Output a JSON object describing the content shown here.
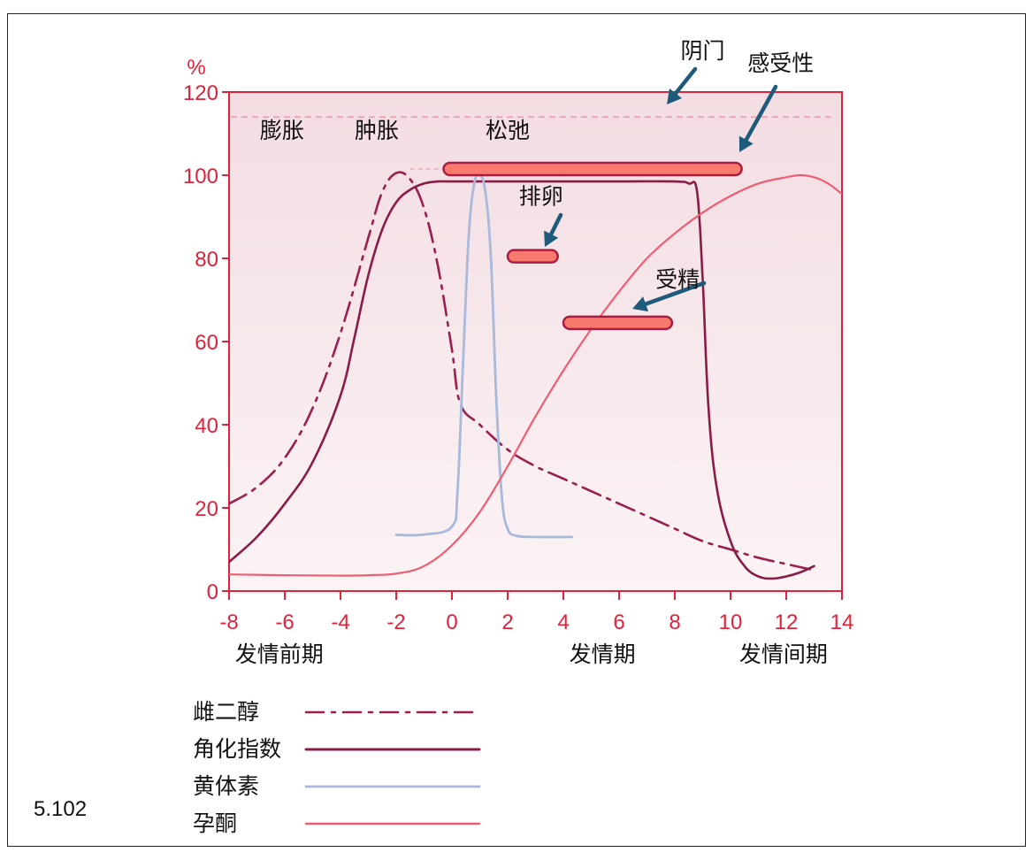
{
  "figure_number": "5.102",
  "chart_data": {
    "type": "line",
    "y_unit": "%",
    "xlim": [
      -8,
      14
    ],
    "ylim": [
      0,
      120
    ],
    "x_ticks": [
      -8,
      -6,
      -4,
      -2,
      0,
      2,
      4,
      6,
      8,
      10,
      12,
      14
    ],
    "y_ticks": [
      0,
      20,
      40,
      60,
      80,
      100,
      120
    ],
    "grid": false,
    "colors": {
      "axis": "#e2213a",
      "plot_bg_top": "#f3dde2",
      "plot_bg_bottom": "#fbf3f4",
      "estradiol": "#9b1f4e",
      "cornification": "#8a1c48",
      "progesterone": "#a8b9dc",
      "pregnanedione": "#ef5d72",
      "bar_fill": "#f77a6c",
      "bar_stroke": "#a81d42",
      "arrow": "#1e5a7a"
    },
    "phase_labels": [
      {
        "text": "发情前期",
        "x": -6.2
      },
      {
        "text": "发情期",
        "x": 5.4
      },
      {
        "text": "发情间期",
        "x": 11.9
      }
    ],
    "vulva_labels": [
      {
        "text": "膨胀",
        "x": -6.1
      },
      {
        "text": "肿胀",
        "x": -2.7
      },
      {
        "text": "松弛",
        "x": 2.0
      }
    ],
    "vulva_line_y": 114,
    "annotations": [
      {
        "text": "阴门",
        "x": 9.0,
        "y": 130
      },
      {
        "text": "感受性",
        "x": 11.8,
        "y": 127
      },
      {
        "text": "排卵",
        "x": 3.2,
        "y": 95
      },
      {
        "text": "受精",
        "x": 8.1,
        "y": 75
      }
    ],
    "bars": [
      {
        "name": "感受性",
        "start": -0.3,
        "end": 10.4,
        "y": 101.5
      },
      {
        "name": "排卵",
        "start": 2.0,
        "end": 3.8,
        "y": 80.5
      },
      {
        "name": "受精",
        "start": 4.0,
        "end": 7.9,
        "y": 64.5
      }
    ],
    "series": [
      {
        "name": "雌二醇",
        "style": "dashdot",
        "x": [
          -8,
          -7,
          -6,
          -5,
          -4,
          -3,
          -2.5,
          -2,
          -1.5,
          -1,
          -0.5,
          0,
          0.3,
          1,
          2,
          3,
          4,
          5,
          6,
          7,
          8,
          9,
          10,
          11,
          12,
          13
        ],
        "y": [
          21,
          25,
          32,
          44,
          62,
          85,
          96,
          100.5,
          99,
          92,
          78,
          58,
          45,
          40,
          34,
          30,
          27,
          24,
          21,
          18,
          15,
          12,
          10,
          8,
          6.5,
          5
        ]
      },
      {
        "name": "角化指数",
        "style": "solid",
        "x": [
          -8,
          -7,
          -6,
          -5,
          -4,
          -3.5,
          -3,
          -2.5,
          -2,
          -1.5,
          -1,
          -0.5,
          0,
          2,
          4,
          6,
          8,
          8.5,
          8.8,
          9,
          9.2,
          9.5,
          10,
          10.5,
          11,
          11.5,
          12,
          12.5,
          13
        ],
        "y": [
          7,
          13,
          21,
          31,
          47,
          61,
          76,
          87,
          93.5,
          96.5,
          98,
          98.5,
          98.5,
          98.5,
          98.5,
          98.5,
          98.5,
          98,
          96,
          75,
          45,
          25,
          12,
          6,
          3.5,
          3,
          3.5,
          4.5,
          6
        ]
      },
      {
        "name": "黄体素",
        "style": "solid",
        "x": [
          -2,
          -1,
          0,
          0.2,
          0.4,
          0.6,
          0.8,
          1.0,
          1.2,
          1.4,
          1.6,
          1.8,
          2.0,
          2.3,
          3,
          4.3
        ],
        "y": [
          13.5,
          13.6,
          15.5,
          24,
          55,
          85,
          98,
          100,
          96,
          80,
          45,
          22,
          15,
          13.3,
          13,
          13
        ]
      },
      {
        "name": "孕酮",
        "style": "solid",
        "x": [
          -8,
          -6,
          -4,
          -3,
          -2,
          -1,
          0,
          1,
          2,
          3,
          4,
          5,
          6,
          7,
          8,
          9,
          10,
          11,
          12,
          12.5,
          13,
          13.5,
          14
        ],
        "y": [
          4,
          3.8,
          3.7,
          3.8,
          4.2,
          6,
          11,
          19,
          30,
          42,
          53,
          63,
          72,
          80,
          86,
          91,
          95,
          98,
          99.5,
          100,
          99.5,
          98,
          95.5
        ]
      }
    ]
  },
  "legend": [
    {
      "label": "雌二醇",
      "style": "dashdot"
    },
    {
      "label": "角化指数",
      "style": "solid"
    },
    {
      "label": "黄体素",
      "style": "solid"
    },
    {
      "label": "孕酮",
      "style": "solid"
    }
  ]
}
